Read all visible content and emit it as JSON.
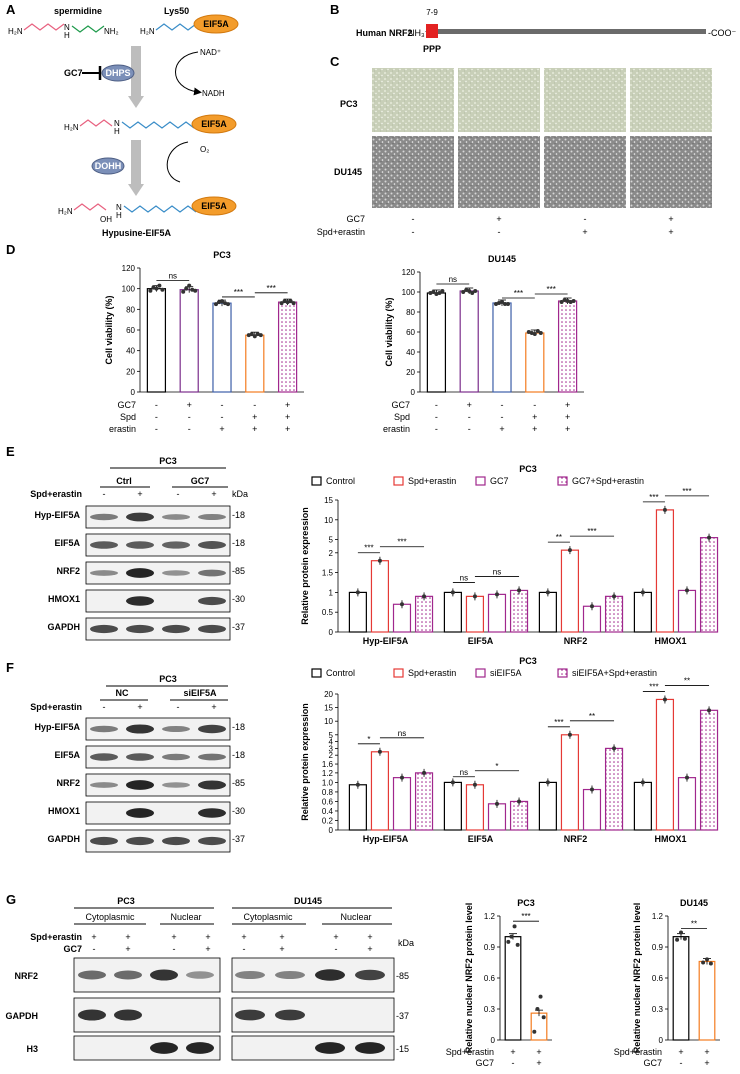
{
  "panel_labels": [
    "A",
    "B",
    "C",
    "D",
    "E",
    "F",
    "G"
  ],
  "panelA": {
    "spermidine": "spermidine",
    "lys50": "Lys50",
    "eif5a": "EIF5A",
    "gc7": "GC7",
    "dhps": "DHPS",
    "nad": "NAD⁺",
    "nadh": "NADH",
    "dohh": "DOHH",
    "o2": "O₂",
    "oh": "OH",
    "h2n": "H₂N",
    "nh2": "NH₂",
    "n": "N",
    "h": "H",
    "hypusine": "Hypusine-EIF5A"
  },
  "panelB": {
    "title": "Human NRF2",
    "nterm": "NH₃⁺-",
    "cterm": "-COO⁻",
    "motif_pos": "7-9",
    "motif": "PPP"
  },
  "panelC": {
    "rows": [
      "PC3",
      "DU145"
    ],
    "conditions": [
      {
        "label": "GC7",
        "values": [
          "-",
          "+",
          "-",
          "+"
        ]
      },
      {
        "label": "Spd+erastin",
        "values": [
          "-",
          "-",
          "+",
          "+"
        ]
      }
    ]
  },
  "panelD": {
    "treatment_rows": [
      {
        "label": "GC7",
        "values": [
          "-",
          "+",
          "-",
          "-",
          "+"
        ]
      },
      {
        "label": "Spd",
        "values": [
          "-",
          "-",
          "-",
          "+",
          "+"
        ]
      },
      {
        "label": "erastin",
        "values": [
          "-",
          "-",
          "+",
          "+",
          "+"
        ]
      }
    ],
    "sig": [
      "ns",
      "***",
      "***"
    ]
  },
  "panelE": {
    "cell_line": "PC3",
    "group_labels": [
      "Ctrl",
      "GC7"
    ],
    "treat_label": "Spd+erastin",
    "treat_values": [
      "-",
      "+",
      "-",
      "+"
    ],
    "kda": "kDa",
    "bands": [
      {
        "name": "Hyp-EIF5A",
        "kda": "-18"
      },
      {
        "name": "EIF5A",
        "kda": "-18"
      },
      {
        "name": "NRF2",
        "kda": "-85"
      },
      {
        "name": "HMOX1",
        "kda": "-30"
      },
      {
        "name": "GAPDH",
        "kda": "-37"
      }
    ],
    "sig": {
      "hyp": [
        "***",
        "***"
      ],
      "eif5a": [
        "ns",
        "ns"
      ],
      "nrf2": [
        "**",
        "***"
      ],
      "hmox1": [
        "***",
        "***"
      ]
    }
  },
  "panelF": {
    "cell_line": "PC3",
    "group_labels": [
      "NC",
      "siEIF5A"
    ],
    "treat_label": "Spd+erastin",
    "treat_values": [
      "-",
      "+",
      "-",
      "+"
    ],
    "bands": [
      {
        "name": "Hyp-EIF5A",
        "kda": "-18"
      },
      {
        "name": "EIF5A",
        "kda": "-18"
      },
      {
        "name": "NRF2",
        "kda": "-85"
      },
      {
        "name": "HMOX1",
        "kda": "-30"
      },
      {
        "name": "GAPDH",
        "kda": "-37"
      }
    ],
    "sig": {
      "hyp": [
        "*",
        "ns"
      ],
      "eif5a": [
        "ns",
        "*"
      ],
      "nrf2": [
        "***",
        "**"
      ],
      "hmox1": [
        "***",
        "**"
      ]
    }
  },
  "panelG": {
    "cells": [
      "PC3",
      "DU145"
    ],
    "fractions": [
      "Cytoplasmic",
      "Nuclear"
    ],
    "row_labels": [
      "Spd+erastin",
      "GC7"
    ],
    "row_values": [
      [
        "+",
        "+",
        "+",
        "+"
      ],
      [
        "-",
        "+",
        "-",
        "+"
      ]
    ],
    "kda": "kDa",
    "bands": [
      {
        "name": "NRF2",
        "kda": "-85"
      },
      {
        "name": "GAPDH",
        "kda": "-37"
      },
      {
        "name": "H3",
        "kda": "-15"
      }
    ],
    "bar_rows": [
      {
        "label": "Spd+erastin",
        "values": [
          "+",
          "+"
        ]
      },
      {
        "label": "GC7",
        "values": [
          "-",
          "+"
        ]
      }
    ],
    "sig": [
      "***",
      "**"
    ]
  },
  "chart_data": [
    {
      "type": "bar",
      "title": "PC3",
      "ylabel": "Cell viability (%)",
      "ylim": [
        0,
        120
      ],
      "yticks": [
        0,
        20,
        40,
        60,
        80,
        100,
        120
      ],
      "categories": [
        "1",
        "2",
        "3",
        "4",
        "5"
      ],
      "values": [
        100,
        99,
        86,
        55,
        87
      ],
      "colors": [
        "#000000",
        "#7b2d8b",
        "#3d5ea8",
        "#f47c20",
        "#a0278d"
      ],
      "dots": [
        [
          98,
          101,
          100,
          103,
          99
        ],
        [
          97,
          100,
          103,
          99,
          98
        ],
        [
          85,
          87,
          88,
          86,
          85
        ],
        [
          55,
          56,
          54,
          56,
          55
        ],
        [
          86,
          88,
          87,
          88,
          86
        ]
      ]
    },
    {
      "type": "bar",
      "title": "DU145",
      "ylabel": "Cell viability (%)",
      "ylim": [
        0,
        120
      ],
      "yticks": [
        0,
        20,
        40,
        60,
        80,
        100,
        120
      ],
      "categories": [
        "1",
        "2",
        "3",
        "4",
        "5"
      ],
      "values": [
        99,
        101,
        89,
        59,
        91
      ],
      "colors": [
        "#000000",
        "#7b2d8b",
        "#3d5ea8",
        "#f47c20",
        "#a0278d"
      ],
      "dots": [
        [
          99,
          100,
          98,
          99,
          101
        ],
        [
          100,
          102,
          101,
          99,
          101
        ],
        [
          88,
          89,
          90,
          88,
          88
        ],
        [
          60,
          59,
          58,
          61,
          59
        ],
        [
          90,
          92,
          91,
          90,
          91
        ]
      ]
    },
    {
      "type": "bar",
      "title": "PC3",
      "ylabel": "Relative protein expression",
      "yticks": [
        "0",
        "0.5",
        "1",
        "1.5",
        "2",
        "5",
        "10",
        "15"
      ],
      "categories": [
        "Hyp-EIF5A",
        "EIF5A",
        "NRF2",
        "HMOX1"
      ],
      "series": [
        {
          "name": "Control",
          "color": "#000000",
          "fill": "#ffffff",
          "values": [
            1,
            1,
            1,
            1
          ]
        },
        {
          "name": "Spd+erastin",
          "color": "#e53935",
          "fill": "#ffffff",
          "values": [
            1.8,
            0.9,
            2.6,
            12.5
          ]
        },
        {
          "name": "GC7",
          "color": "#a0278d",
          "fill": "#ffffff",
          "values": [
            0.7,
            0.95,
            0.65,
            1.05
          ]
        },
        {
          "name": "GC7+Spd+erastin",
          "color": "#a0278d",
          "fill": "dots",
          "values": [
            0.9,
            1.05,
            0.9,
            5.5
          ]
        }
      ]
    },
    {
      "type": "bar",
      "title": "PC3",
      "ylabel": "Relative protein expression",
      "yticks": [
        "0",
        "0.2",
        "0.4",
        "0.6",
        "0.8",
        "1.0",
        "1.2",
        "1.6",
        "2",
        "3",
        "4",
        "5",
        "10",
        "15",
        "20"
      ],
      "categories": [
        "Hyp-EIF5A",
        "EIF5A",
        "NRF2",
        "HMOX1"
      ],
      "series": [
        {
          "name": "Control",
          "color": "#000000",
          "fill": "#ffffff",
          "values": [
            0.95,
            1.0,
            1.0,
            1.0
          ]
        },
        {
          "name": "Spd+erastin",
          "color": "#e53935",
          "fill": "#ffffff",
          "values": [
            2.5,
            0.95,
            5.0,
            18
          ]
        },
        {
          "name": "siEIF5A",
          "color": "#a0278d",
          "fill": "#ffffff",
          "values": [
            1.1,
            0.55,
            0.85,
            1.1
          ]
        },
        {
          "name": "siEIF5A+Spd+erastin",
          "color": "#a0278d",
          "fill": "dots",
          "values": [
            1.2,
            0.6,
            3.0,
            14
          ]
        }
      ]
    },
    {
      "type": "bar",
      "title": "PC3",
      "ylabel": "Relative nuclear NRF2 protein level",
      "ylim": [
        0,
        1.2
      ],
      "yticks": [
        "0",
        "0.3",
        "0.6",
        "0.9",
        "1.2"
      ],
      "categories": [
        "1",
        "2"
      ],
      "values": [
        1.0,
        0.26
      ],
      "colors": [
        "#000000",
        "#f47c20"
      ],
      "dots": [
        [
          0.95,
          1.0,
          1.1,
          0.92
        ],
        [
          0.08,
          0.3,
          0.42,
          0.22
        ]
      ]
    },
    {
      "type": "bar",
      "title": "DU145",
      "ylabel": "Relative nuclear NRF2 protein level",
      "ylim": [
        0,
        1.2
      ],
      "yticks": [
        "0",
        "0.3",
        "0.6",
        "0.9",
        "1.2"
      ],
      "categories": [
        "1",
        "2"
      ],
      "values": [
        1.0,
        0.76
      ],
      "colors": [
        "#000000",
        "#f47c20"
      ],
      "dots": [
        [
          0.97,
          1.04,
          0.98
        ],
        [
          0.75,
          0.78,
          0.74
        ]
      ]
    }
  ]
}
